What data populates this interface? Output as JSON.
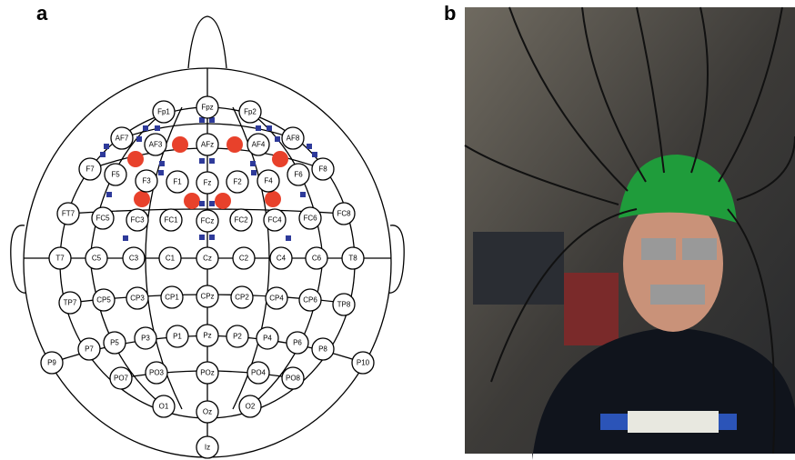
{
  "panels": {
    "a": {
      "label": "a",
      "electrodes": [
        "Fp1",
        "Fpz",
        "Fp2",
        "AF7",
        "AF3",
        "AFz",
        "AF4",
        "AF8",
        "F7",
        "F5",
        "F3",
        "F1",
        "Fz",
        "F2",
        "F4",
        "F6",
        "F8",
        "FT7",
        "FC5",
        "FC3",
        "FC1",
        "FCz",
        "FC2",
        "FC4",
        "FC6",
        "FC8",
        "T7",
        "C5",
        "C3",
        "C1",
        "Cz",
        "C2",
        "C4",
        "C6",
        "T8",
        "TP7",
        "CP5",
        "CP3",
        "CP1",
        "CPz",
        "CP2",
        "CP4",
        "CP6",
        "TP8",
        "P9",
        "P7",
        "P5",
        "P3",
        "P1",
        "Pz",
        "P2",
        "P4",
        "P6",
        "P8",
        "P10",
        "PO7",
        "PO3",
        "POz",
        "PO4",
        "PO8",
        "O1",
        "Oz",
        "O2",
        "Iz"
      ]
    },
    "b": {
      "label": "b"
    }
  }
}
